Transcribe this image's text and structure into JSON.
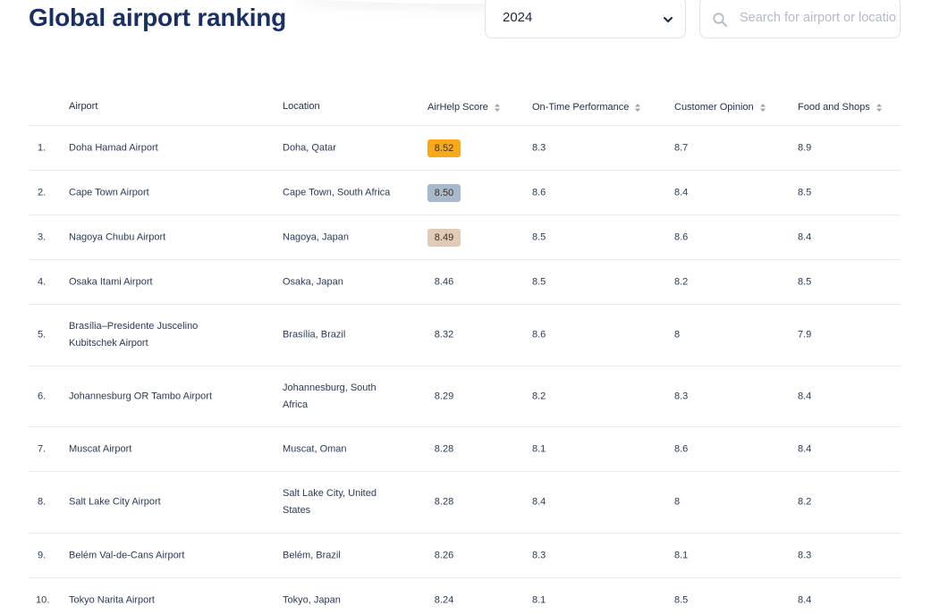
{
  "page": {
    "title": "Global airport ranking"
  },
  "year_select": {
    "value": "2024"
  },
  "search": {
    "placeholder": "Search for airport or location"
  },
  "colors": {
    "gold": "#f7a91c",
    "silver": "#a9b9cc",
    "bronze": "#e2cbb6"
  },
  "table": {
    "columns": {
      "airport": "Airport",
      "location": "Location",
      "score": "AirHelp Score",
      "ontime": "On-Time Performance",
      "opinion": "Customer Opinion",
      "food": "Food and Shops"
    },
    "rows": [
      {
        "rank": "1.",
        "airport": "Doha Hamad Airport",
        "location": "Doha, Qatar",
        "score": "8.52",
        "ontime": "8.3",
        "opinion": "8.7",
        "food": "8.9",
        "medal": "gold"
      },
      {
        "rank": "2.",
        "airport": "Cape Town Airport",
        "location": "Cape Town, South Africa",
        "score": "8.50",
        "ontime": "8.6",
        "opinion": "8.4",
        "food": "8.5",
        "medal": "silver"
      },
      {
        "rank": "3.",
        "airport": "Nagoya Chubu Airport",
        "location": "Nagoya, Japan",
        "score": "8.49",
        "ontime": "8.5",
        "opinion": "8.6",
        "food": "8.4",
        "medal": "bronze"
      },
      {
        "rank": "4.",
        "airport": "Osaka Itami Airport",
        "location": "Osaka, Japan",
        "score": "8.46",
        "ontime": "8.5",
        "opinion": "8.2",
        "food": "8.5",
        "medal": ""
      },
      {
        "rank": "5.",
        "airport": "Brasília–Presidente Juscelino Kubitschek Airport",
        "location": "Brasília, Brazil",
        "score": "8.32",
        "ontime": "8.6",
        "opinion": "8",
        "food": "7.9",
        "medal": ""
      },
      {
        "rank": "6.",
        "airport": "Johannesburg OR Tambo Airport",
        "location": "Johannesburg, South Africa",
        "score": "8.29",
        "ontime": "8.2",
        "opinion": "8.3",
        "food": "8.4",
        "medal": ""
      },
      {
        "rank": "7.",
        "airport": "Muscat Airport",
        "location": "Muscat, Oman",
        "score": "8.28",
        "ontime": "8.1",
        "opinion": "8.6",
        "food": "8.4",
        "medal": ""
      },
      {
        "rank": "8.",
        "airport": "Salt Lake City Airport",
        "location": "Salt Lake City, United States",
        "score": "8.28",
        "ontime": "8.4",
        "opinion": "8",
        "food": "8.2",
        "medal": ""
      },
      {
        "rank": "9.",
        "airport": "Belém Val-de-Cans Airport",
        "location": "Belém, Brazil",
        "score": "8.26",
        "ontime": "8.3",
        "opinion": "8.1",
        "food": "8.3",
        "medal": ""
      },
      {
        "rank": "10.",
        "airport": "Tokyo Narita Airport",
        "location": "Tokyo, Japan",
        "score": "8.24",
        "ontime": "8.1",
        "opinion": "8.5",
        "food": "8.4",
        "medal": ""
      }
    ]
  }
}
